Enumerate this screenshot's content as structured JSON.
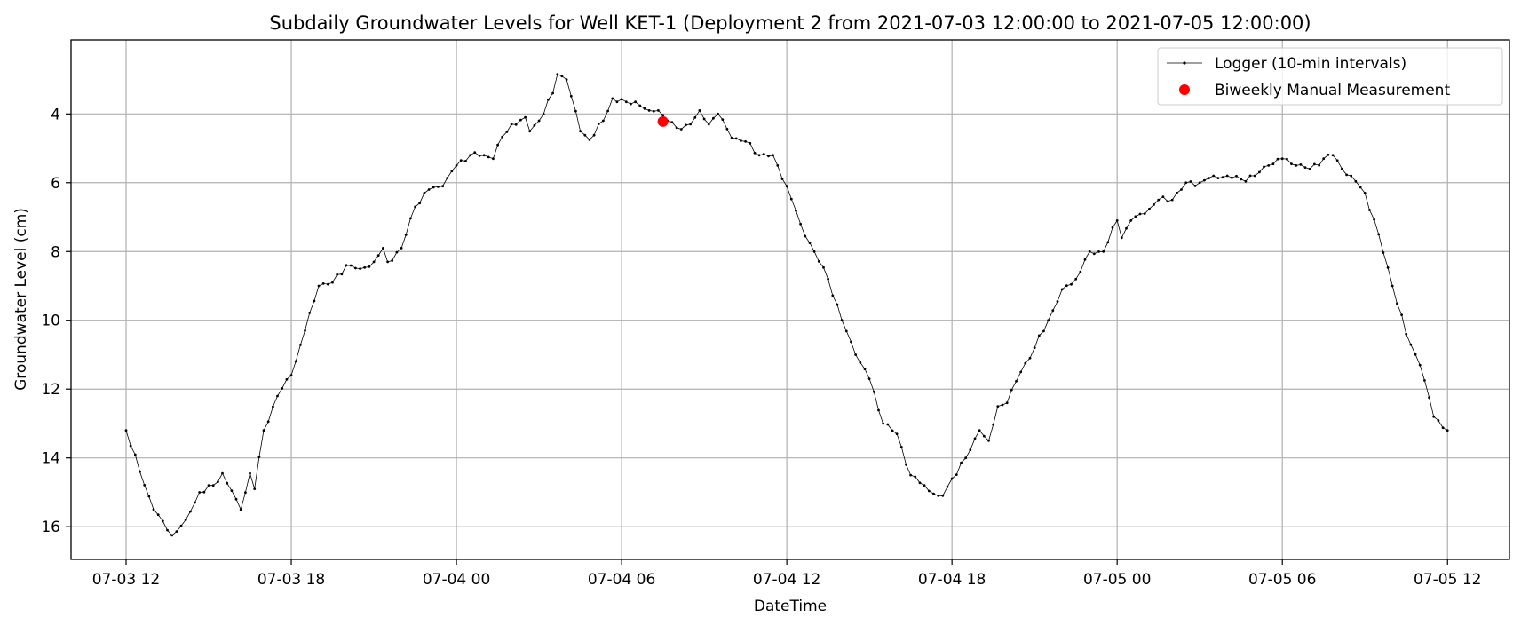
{
  "chart_data": {
    "type": "line",
    "title": "Subdaily Groundwater Levels for Well KET-1 (Deployment 2 from 2021-07-03 12:00:00 to 2021-07-05 12:00:00)",
    "xlabel": "DateTime",
    "ylabel": "Groundwater Level (cm)",
    "x_range": [
      "2021-07-03 10:00",
      "2021-07-05 14:15"
    ],
    "ylim": [
      16.95,
      1.85
    ],
    "y_inverted": true,
    "x_ticks": [
      {
        "time": "2021-07-03 12:00",
        "label": "07-03 12"
      },
      {
        "time": "2021-07-03 18:00",
        "label": "07-03 18"
      },
      {
        "time": "2021-07-04 00:00",
        "label": "07-04 00"
      },
      {
        "time": "2021-07-04 06:00",
        "label": "07-04 06"
      },
      {
        "time": "2021-07-04 12:00",
        "label": "07-04 12"
      },
      {
        "time": "2021-07-04 18:00",
        "label": "07-04 18"
      },
      {
        "time": "2021-07-05 00:00",
        "label": "07-05 00"
      },
      {
        "time": "2021-07-05 06:00",
        "label": "07-05 06"
      },
      {
        "time": "2021-07-05 12:00",
        "label": "07-05 12"
      }
    ],
    "y_ticks": [
      4,
      6,
      8,
      10,
      12,
      14,
      16
    ],
    "grid": true,
    "legend_position": "top-right",
    "series": [
      {
        "name": "Logger (10-min intervals)",
        "kind": "line-with-markers",
        "color": "#000000",
        "interval_minutes": 10,
        "start": "2021-07-03 12:00",
        "anchors": [
          [
            "2021-07-03 12:00",
            13.2
          ],
          [
            "2021-07-03 12:30",
            14.4
          ],
          [
            "2021-07-03 13:00",
            15.5
          ],
          [
            "2021-07-03 13:30",
            16.1
          ],
          [
            "2021-07-03 13:40",
            16.25
          ],
          [
            "2021-07-03 14:10",
            15.8
          ],
          [
            "2021-07-03 14:40",
            15.0
          ],
          [
            "2021-07-03 15:10",
            14.8
          ],
          [
            "2021-07-03 15:30",
            14.45
          ],
          [
            "2021-07-03 16:00",
            15.2
          ],
          [
            "2021-07-03 16:10",
            15.5
          ],
          [
            "2021-07-03 16:30",
            14.45
          ],
          [
            "2021-07-03 16:40",
            14.9
          ],
          [
            "2021-07-03 17:00",
            13.2
          ],
          [
            "2021-07-03 17:30",
            12.2
          ],
          [
            "2021-07-03 18:00",
            11.6
          ],
          [
            "2021-07-03 18:30",
            10.3
          ],
          [
            "2021-07-03 19:00",
            9.0
          ],
          [
            "2021-07-03 19:30",
            8.9
          ],
          [
            "2021-07-03 20:00",
            8.4
          ],
          [
            "2021-07-03 20:30",
            8.5
          ],
          [
            "2021-07-03 21:00",
            8.3
          ],
          [
            "2021-07-03 21:20",
            7.9
          ],
          [
            "2021-07-03 21:30",
            8.3
          ],
          [
            "2021-07-03 22:00",
            7.9
          ],
          [
            "2021-07-03 22:30",
            6.7
          ],
          [
            "2021-07-03 23:00",
            6.2
          ],
          [
            "2021-07-03 23:30",
            6.1
          ],
          [
            "2021-07-04 00:00",
            5.5
          ],
          [
            "2021-07-04 00:30",
            5.2
          ],
          [
            "2021-07-04 01:00",
            5.2
          ],
          [
            "2021-07-04 01:20",
            5.3
          ],
          [
            "2021-07-04 01:30",
            4.9
          ],
          [
            "2021-07-04 02:00",
            4.3
          ],
          [
            "2021-07-04 02:30",
            4.1
          ],
          [
            "2021-07-04 02:40",
            4.5
          ],
          [
            "2021-07-04 03:00",
            4.2
          ],
          [
            "2021-07-04 03:30",
            3.4
          ],
          [
            "2021-07-04 03:40",
            2.85
          ],
          [
            "2021-07-04 04:00",
            3.0
          ],
          [
            "2021-07-04 04:30",
            4.5
          ],
          [
            "2021-07-04 04:50",
            4.75
          ],
          [
            "2021-07-04 05:20",
            4.2
          ],
          [
            "2021-07-04 05:40",
            3.55
          ],
          [
            "2021-07-04 06:10",
            3.65
          ],
          [
            "2021-07-04 06:30",
            3.65
          ],
          [
            "2021-07-04 07:00",
            3.9
          ],
          [
            "2021-07-04 07:20",
            3.9
          ],
          [
            "2021-07-04 07:40",
            4.2
          ],
          [
            "2021-07-04 08:00",
            4.4
          ],
          [
            "2021-07-04 08:30",
            4.3
          ],
          [
            "2021-07-04 08:50",
            3.9
          ],
          [
            "2021-07-04 09:10",
            4.3
          ],
          [
            "2021-07-04 09:30",
            4.0
          ],
          [
            "2021-07-04 10:00",
            4.7
          ],
          [
            "2021-07-04 10:30",
            4.8
          ],
          [
            "2021-07-04 11:00",
            5.2
          ],
          [
            "2021-07-04 11:30",
            5.2
          ],
          [
            "2021-07-04 12:00",
            6.1
          ],
          [
            "2021-07-04 12:30",
            7.2
          ],
          [
            "2021-07-04 13:00",
            8.0
          ],
          [
            "2021-07-04 13:30",
            8.8
          ],
          [
            "2021-07-04 14:00",
            10.0
          ],
          [
            "2021-07-04 14:30",
            11.0
          ],
          [
            "2021-07-04 15:00",
            11.7
          ],
          [
            "2021-07-04 15:30",
            13.0
          ],
          [
            "2021-07-04 16:00",
            13.3
          ],
          [
            "2021-07-04 16:30",
            14.5
          ],
          [
            "2021-07-04 17:00",
            14.8
          ],
          [
            "2021-07-04 17:30",
            15.1
          ],
          [
            "2021-07-04 17:40",
            15.1
          ],
          [
            "2021-07-04 18:00",
            14.6
          ],
          [
            "2021-07-04 18:30",
            14.0
          ],
          [
            "2021-07-04 19:00",
            13.2
          ],
          [
            "2021-07-04 19:20",
            13.5
          ],
          [
            "2021-07-04 19:40",
            12.5
          ],
          [
            "2021-07-04 20:00",
            12.4
          ],
          [
            "2021-07-04 20:30",
            11.5
          ],
          [
            "2021-07-04 21:00",
            10.8
          ],
          [
            "2021-07-04 21:30",
            10.0
          ],
          [
            "2021-07-04 22:00",
            9.1
          ],
          [
            "2021-07-04 22:30",
            8.8
          ],
          [
            "2021-07-04 23:00",
            8.0
          ],
          [
            "2021-07-04 23:30",
            8.0
          ],
          [
            "2021-07-05 00:00",
            7.1
          ],
          [
            "2021-07-05 00:10",
            7.6
          ],
          [
            "2021-07-05 00:30",
            7.1
          ],
          [
            "2021-07-05 01:00",
            6.9
          ],
          [
            "2021-07-05 01:30",
            6.5
          ],
          [
            "2021-07-05 02:00",
            6.5
          ],
          [
            "2021-07-05 02:30",
            6.0
          ],
          [
            "2021-07-05 03:00",
            6.0
          ],
          [
            "2021-07-05 03:30",
            5.8
          ],
          [
            "2021-07-05 04:00",
            5.8
          ],
          [
            "2021-07-05 04:30",
            5.9
          ],
          [
            "2021-07-05 05:00",
            5.8
          ],
          [
            "2021-07-05 05:30",
            5.5
          ],
          [
            "2021-07-05 06:00",
            5.3
          ],
          [
            "2021-07-05 06:30",
            5.5
          ],
          [
            "2021-07-05 07:00",
            5.6
          ],
          [
            "2021-07-05 07:30",
            5.3
          ],
          [
            "2021-07-05 07:50",
            5.2
          ],
          [
            "2021-07-05 08:10",
            5.6
          ],
          [
            "2021-07-05 08:30",
            5.8
          ],
          [
            "2021-07-05 09:00",
            6.3
          ],
          [
            "2021-07-05 09:30",
            7.5
          ],
          [
            "2021-07-05 10:00",
            9.0
          ],
          [
            "2021-07-05 10:30",
            10.4
          ],
          [
            "2021-07-05 11:00",
            11.3
          ],
          [
            "2021-07-05 11:30",
            12.8
          ],
          [
            "2021-07-05 12:00",
            13.2
          ]
        ]
      },
      {
        "name": "Biweekly Manual Measurement",
        "kind": "scatter",
        "color": "#ff0000",
        "points": [
          [
            "2021-07-04 07:30",
            4.22
          ]
        ]
      }
    ]
  }
}
